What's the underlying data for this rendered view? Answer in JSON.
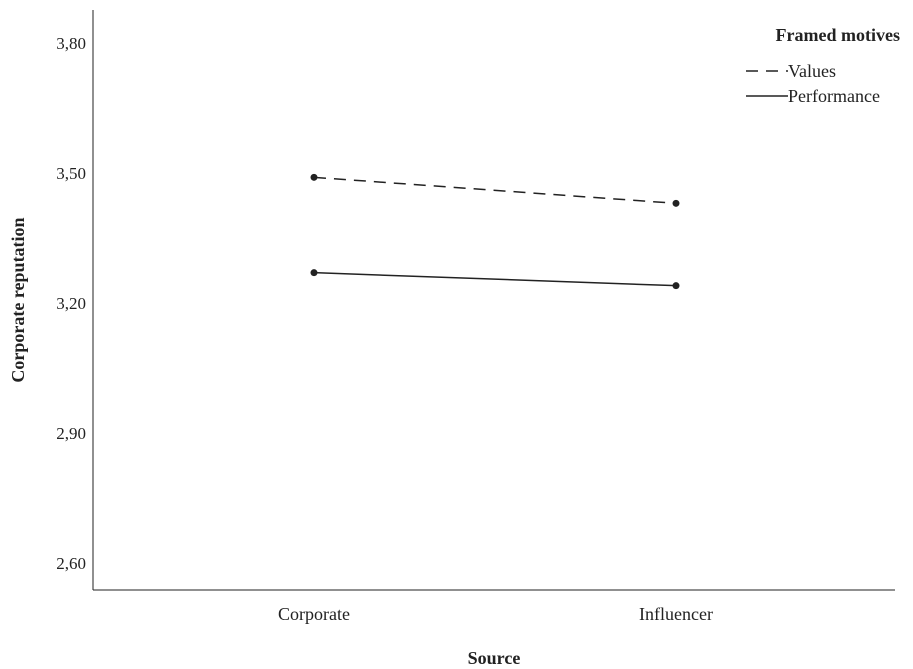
{
  "chart_data": {
    "type": "line",
    "xlabel": "Source",
    "ylabel": "Corporate reputation",
    "categories": [
      "Corporate",
      "Influencer"
    ],
    "ylim": [
      2.55,
      3.85
    ],
    "yticks": [
      "2,60",
      "2,90",
      "3,20",
      "3,50",
      "3,80"
    ],
    "ytick_values": [
      2.6,
      2.9,
      3.2,
      3.5,
      3.8
    ],
    "grid": false,
    "legend": {
      "title": "Framed motives",
      "placement": "top-right"
    },
    "series": [
      {
        "name": "Values",
        "style": "dashed",
        "values": [
          3.49,
          3.43
        ]
      },
      {
        "name": "Performance",
        "style": "solid",
        "values": [
          3.27,
          3.24
        ]
      }
    ],
    "colors": {
      "line": "#222222",
      "axis": "#222222"
    }
  }
}
